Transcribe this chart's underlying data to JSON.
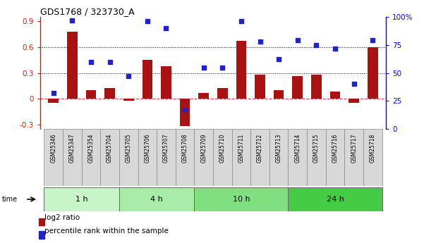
{
  "title": "GDS1768 / 323730_A",
  "samples": [
    "GSM25346",
    "GSM25347",
    "GSM25354",
    "GSM25704",
    "GSM25705",
    "GSM25706",
    "GSM25707",
    "GSM25708",
    "GSM25709",
    "GSM25710",
    "GSM25711",
    "GSM25712",
    "GSM25713",
    "GSM25714",
    "GSM25715",
    "GSM25716",
    "GSM25717",
    "GSM25718"
  ],
  "log2_ratio": [
    -0.05,
    0.78,
    0.1,
    0.12,
    -0.02,
    0.45,
    0.38,
    -0.32,
    0.07,
    0.12,
    0.67,
    0.28,
    0.1,
    0.26,
    0.28,
    0.08,
    -0.05,
    0.6
  ],
  "percentile": [
    32,
    97,
    60,
    60,
    47,
    96,
    90,
    17,
    55,
    55,
    96,
    78,
    62,
    79,
    75,
    72,
    40,
    79
  ],
  "groups": [
    {
      "label": "1 h",
      "start": 0,
      "end": 4,
      "color": "#c8f5c8"
    },
    {
      "label": "4 h",
      "start": 4,
      "end": 8,
      "color": "#a8eca8"
    },
    {
      "label": "10 h",
      "start": 8,
      "end": 13,
      "color": "#80e080"
    },
    {
      "label": "24 h",
      "start": 13,
      "end": 18,
      "color": "#44cc44"
    }
  ],
  "bar_color": "#aa1111",
  "dot_color": "#2222cc",
  "zero_line_color": "#cc4444",
  "grid_color": "#000000",
  "ylim_left": [
    -0.35,
    0.95
  ],
  "ylim_right": [
    0,
    100
  ],
  "yticks_left": [
    -0.3,
    0.0,
    0.3,
    0.6,
    0.9
  ],
  "ytick_labels_left": [
    "-0.3",
    "0",
    "0.3",
    "0.6",
    "0.9"
  ],
  "yticks_right": [
    0,
    25,
    50,
    75,
    100
  ],
  "ytick_labels_right": [
    "0",
    "25",
    "50",
    "75",
    "100%"
  ],
  "bar_width": 0.55,
  "cell_color": "#d8d8d8",
  "cell_border": "#888888"
}
